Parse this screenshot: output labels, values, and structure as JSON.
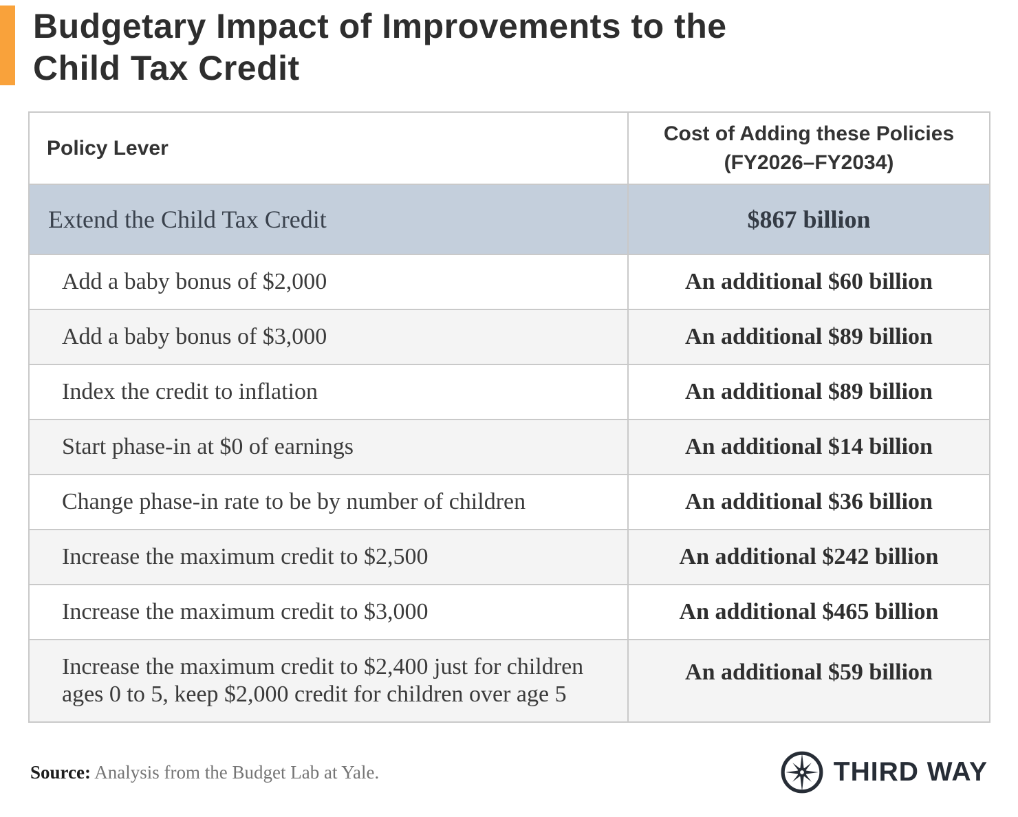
{
  "colors": {
    "accent_orange": "#F9A23B",
    "highlight_row": "#C4CFDC",
    "zebra_row": "#F4F4F4",
    "border": "#C9C9C9",
    "logo_dark": "#272D36"
  },
  "title": "Budgetary Impact of Improvements to the Child Tax Credit",
  "table": {
    "header_lever": "Policy Lever",
    "header_cost_line1": "Cost of Adding these Policies",
    "header_cost_line2": "(FY2026–FY2034)",
    "rows": [
      {
        "lever": "Extend the Child Tax Credit",
        "cost": "$867 billion",
        "highlight": true,
        "indent": false
      },
      {
        "lever": "Add a baby bonus of $2,000",
        "cost": "An additional $60 billion",
        "highlight": false,
        "indent": true
      },
      {
        "lever": "Add a baby bonus of $3,000",
        "cost": "An additional $89 billion",
        "highlight": false,
        "indent": true
      },
      {
        "lever": "Index the credit to inflation",
        "cost": "An additional $89 billion",
        "highlight": false,
        "indent": true
      },
      {
        "lever": "Start phase-in at $0 of earnings",
        "cost": "An additional $14 billion",
        "highlight": false,
        "indent": true
      },
      {
        "lever": "Change phase-in rate to be by number of children",
        "cost": "An additional $36 billion",
        "highlight": false,
        "indent": true
      },
      {
        "lever": "Increase the maximum credit to $2,500",
        "cost": "An additional $242 billion",
        "highlight": false,
        "indent": true
      },
      {
        "lever": "Increase the maximum credit to $3,000",
        "cost": "An additional $465 billion",
        "highlight": false,
        "indent": true
      },
      {
        "lever": "Increase the maximum credit to $2,400 just for children ages 0 to 5, keep $2,000 credit for children over age 5",
        "cost": "An additional $59 billion",
        "highlight": false,
        "indent": true
      }
    ]
  },
  "footer": {
    "source_label": "Source:",
    "source_text": "Analysis from the Budget Lab at Yale.",
    "logo_text": "THIRD WAY"
  }
}
